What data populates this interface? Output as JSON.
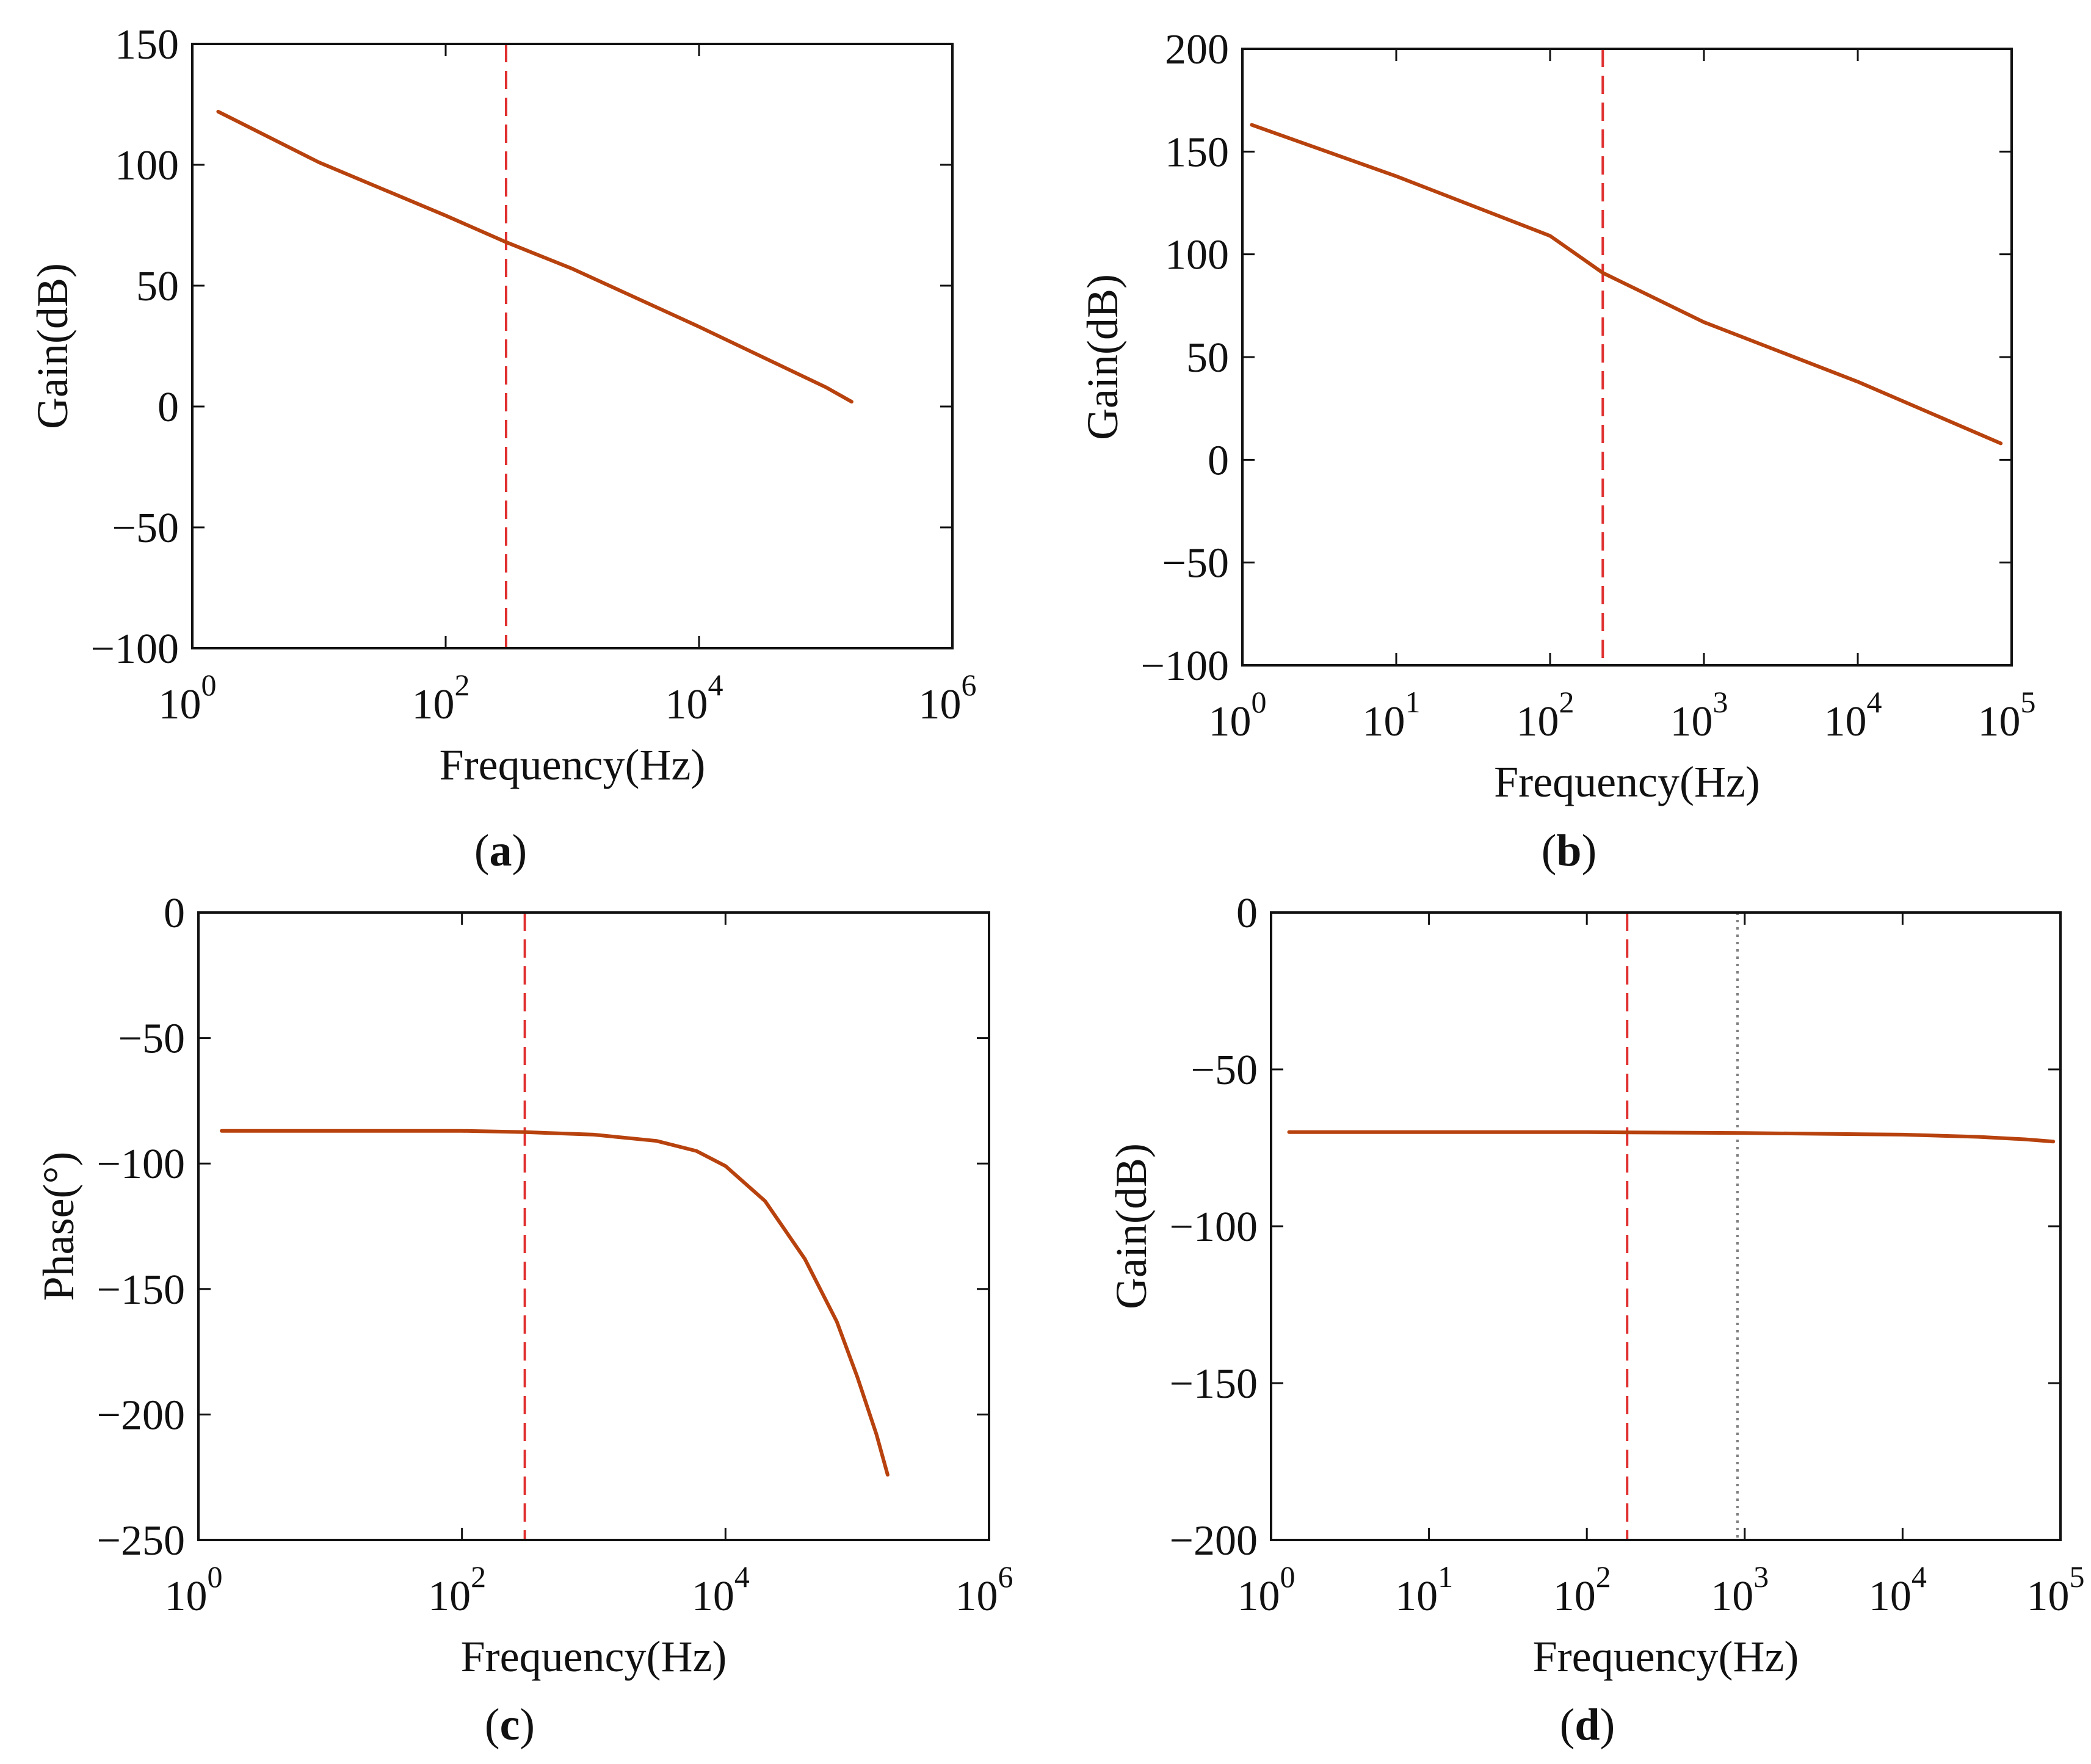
{
  "colors": {
    "curve": "#b8420e",
    "marker": "#e03030",
    "dotted": "#808080"
  },
  "chart_data": [
    {
      "id": "a",
      "type": "line",
      "caption": "a",
      "xlabel": "Frequency(Hz)",
      "ylabel": "Gain(dB)",
      "xscale": "log",
      "xlim": [
        1,
        1000000
      ],
      "ylim": [
        -100,
        150
      ],
      "xticks": [
        {
          "v": 1,
          "base": "10",
          "exp": "0"
        },
        {
          "v": 100,
          "base": "10",
          "exp": "2"
        },
        {
          "v": 10000,
          "base": "10",
          "exp": "4"
        },
        {
          "v": 1000000,
          "base": "10",
          "exp": "6"
        }
      ],
      "yticks": [
        {
          "v": 150,
          "label": "150"
        },
        {
          "v": 100,
          "label": "100"
        },
        {
          "v": 50,
          "label": "50"
        },
        {
          "v": 0,
          "label": "0"
        },
        {
          "v": -50,
          "label": "−50"
        },
        {
          "v": -100,
          "label": "−100"
        }
      ],
      "series": [
        {
          "name": "gain",
          "x": [
            1.6,
            10,
            100,
            300,
            1000,
            10000,
            100000,
            160000
          ],
          "y": [
            122,
            101,
            79,
            68,
            57,
            33,
            8,
            2
          ]
        }
      ],
      "vlines": [
        {
          "x": 300,
          "style": "dashed"
        }
      ]
    },
    {
      "id": "b",
      "type": "line",
      "caption": "b",
      "xlabel": "Frequency(Hz)",
      "ylabel": "Gain(dB)",
      "xscale": "log",
      "xlim": [
        1,
        100000
      ],
      "ylim": [
        -100,
        200
      ],
      "xticks": [
        {
          "v": 1,
          "base": "10",
          "exp": "0"
        },
        {
          "v": 10,
          "base": "10",
          "exp": "1"
        },
        {
          "v": 100,
          "base": "10",
          "exp": "2"
        },
        {
          "v": 1000,
          "base": "10",
          "exp": "3"
        },
        {
          "v": 10000,
          "base": "10",
          "exp": "4"
        },
        {
          "v": 100000,
          "base": "10",
          "exp": "5"
        }
      ],
      "yticks": [
        {
          "v": 200,
          "label": "200"
        },
        {
          "v": 150,
          "label": "150"
        },
        {
          "v": 100,
          "label": "100"
        },
        {
          "v": 50,
          "label": "50"
        },
        {
          "v": 0,
          "label": "0"
        },
        {
          "v": -50,
          "label": "−50"
        },
        {
          "v": -100,
          "label": "−100"
        }
      ],
      "series": [
        {
          "name": "gain",
          "x": [
            1.15,
            10,
            100,
            220,
            1000,
            10000,
            85000
          ],
          "y": [
            163,
            138,
            109,
            91,
            67,
            38,
            8
          ]
        }
      ],
      "vlines": [
        {
          "x": 220,
          "style": "dashed"
        }
      ]
    },
    {
      "id": "c",
      "type": "line",
      "caption": "c",
      "xlabel": "Frequency(Hz)",
      "ylabel": "Phase(°)",
      "xscale": "log",
      "xlim": [
        1,
        1000000
      ],
      "ylim": [
        -250,
        0
      ],
      "xticks": [
        {
          "v": 1,
          "base": "10",
          "exp": "0"
        },
        {
          "v": 100,
          "base": "10",
          "exp": "2"
        },
        {
          "v": 10000,
          "base": "10",
          "exp": "4"
        },
        {
          "v": 1000000,
          "base": "10",
          "exp": "6"
        }
      ],
      "yticks": [
        {
          "v": 0,
          "label": "0"
        },
        {
          "v": -50,
          "label": "−50"
        },
        {
          "v": -100,
          "label": "−100"
        },
        {
          "v": -150,
          "label": "−150"
        },
        {
          "v": -200,
          "label": "−200"
        },
        {
          "v": -250,
          "label": "−250"
        }
      ],
      "series": [
        {
          "name": "phase",
          "x": [
            1.5,
            10,
            100,
            300,
            1000,
            3000,
            6000,
            10000,
            20000,
            40000,
            70000,
            100000,
            140000,
            170000
          ],
          "y": [
            -87,
            -87,
            -87,
            -87.5,
            -88.5,
            -91,
            -95,
            -101,
            -115,
            -138,
            -163,
            -185,
            -208,
            -224
          ]
        }
      ],
      "vlines": [
        {
          "x": 300,
          "style": "dashed"
        }
      ]
    },
    {
      "id": "d",
      "type": "line",
      "caption": "d",
      "xlabel": "Frequency(Hz)",
      "ylabel": "Gain(dB)",
      "xscale": "log",
      "xlim": [
        1,
        100000
      ],
      "ylim": [
        -200,
        0
      ],
      "xticks": [
        {
          "v": 1,
          "base": "10",
          "exp": "0"
        },
        {
          "v": 10,
          "base": "10",
          "exp": "1"
        },
        {
          "v": 100,
          "base": "10",
          "exp": "2"
        },
        {
          "v": 1000,
          "base": "10",
          "exp": "3"
        },
        {
          "v": 10000,
          "base": "10",
          "exp": "4"
        },
        {
          "v": 100000,
          "base": "10",
          "exp": "5"
        }
      ],
      "yticks": [
        {
          "v": 0,
          "label": "0"
        },
        {
          "v": -50,
          "label": "−50"
        },
        {
          "v": -100,
          "label": "−100"
        },
        {
          "v": -150,
          "label": "−150"
        },
        {
          "v": -200,
          "label": "−200"
        }
      ],
      "series": [
        {
          "name": "gain",
          "x": [
            1.3,
            10,
            100,
            1000,
            10000,
            30000,
            60000,
            90000
          ],
          "y": [
            -70,
            -70,
            -70,
            -70.3,
            -70.8,
            -71.5,
            -72.3,
            -73
          ]
        }
      ],
      "vlines": [
        {
          "x": 180,
          "style": "dashed"
        },
        {
          "x": 900,
          "style": "dotted"
        }
      ]
    }
  ]
}
